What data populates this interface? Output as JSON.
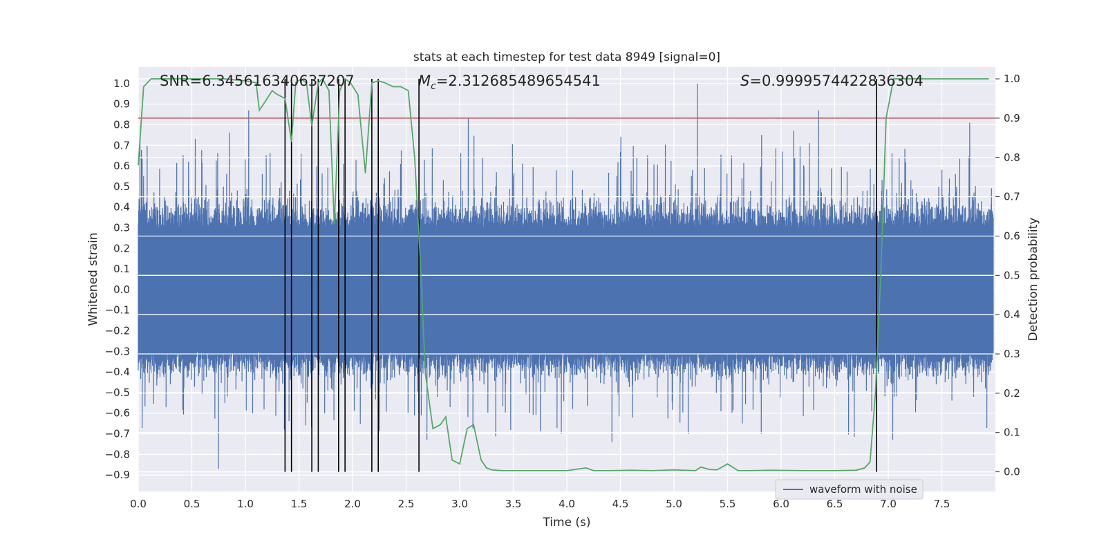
{
  "chart_data": {
    "type": "line",
    "title": "stats at each timestep for test data 8949 [signal=0]",
    "xlabel": "Time (s)",
    "ylabel_left": "Whitened strain",
    "ylabel_right": "Detection probability",
    "xlim": [
      0.0,
      8.0
    ],
    "ylim_left": [
      -0.98,
      1.08
    ],
    "ylim_right": [
      -0.05,
      1.03
    ],
    "x_ticks": [
      0.0,
      0.5,
      1.0,
      1.5,
      2.0,
      2.5,
      3.0,
      3.5,
      4.0,
      4.5,
      5.0,
      5.5,
      6.0,
      6.5,
      7.0,
      7.5
    ],
    "x_tick_labels": [
      "0.0",
      "0.5",
      "1.0",
      "1.5",
      "2.0",
      "2.5",
      "3.0",
      "3.5",
      "4.0",
      "4.5",
      "5.0",
      "5.5",
      "6.0",
      "6.5",
      "7.0",
      "7.5"
    ],
    "y_left_ticks": [
      1.0,
      0.9,
      0.8,
      0.7,
      0.6,
      0.5,
      0.4,
      0.3,
      0.2,
      0.1,
      0.0,
      -0.1,
      -0.2,
      -0.3,
      -0.4,
      -0.5,
      -0.6,
      -0.7,
      -0.8,
      -0.9
    ],
    "y_left_tick_labels": [
      "1.0",
      "0.9",
      "0.8",
      "0.7",
      "0.6",
      "0.5",
      "0.4",
      "0.3",
      "0.2",
      "0.1",
      "0.0",
      "−0.1",
      "−0.2",
      "−0.3",
      "−0.4",
      "−0.5",
      "−0.6",
      "−0.7",
      "−0.8",
      "−0.9"
    ],
    "y_right_ticks": [
      1.0,
      0.9,
      0.8,
      0.7,
      0.6,
      0.5,
      0.4,
      0.3,
      0.2,
      0.1,
      0.0
    ],
    "y_right_tick_labels": [
      "1.0",
      "0.9",
      "0.8",
      "0.7",
      "0.6",
      "0.5",
      "0.4",
      "0.3",
      "0.2",
      "0.1",
      "0.0"
    ],
    "threshold": 0.9,
    "waveform": {
      "name": "waveform with noise",
      "samples": 2400,
      "core_amplitude": 0.3,
      "max_peak": 1.0,
      "min_trough": -0.87
    },
    "detection_probability": {
      "name": "Detection probability",
      "x": [
        0.0,
        0.05,
        0.12,
        0.2,
        0.4,
        0.6,
        0.8,
        1.0,
        1.1,
        1.13,
        1.18,
        1.25,
        1.3,
        1.37,
        1.43,
        1.47,
        1.52,
        1.57,
        1.62,
        1.68,
        1.72,
        1.78,
        1.83,
        1.88,
        1.93,
        1.98,
        2.05,
        2.12,
        2.18,
        2.24,
        2.3,
        2.38,
        2.45,
        2.52,
        2.58,
        2.63,
        2.68,
        2.75,
        2.82,
        2.87,
        2.93,
        3.0,
        3.07,
        3.13,
        3.2,
        3.25,
        3.3,
        3.4,
        3.5,
        3.6,
        3.8,
        4.0,
        4.1,
        4.18,
        4.25,
        4.4,
        4.6,
        4.8,
        5.0,
        5.1,
        5.2,
        5.25,
        5.33,
        5.4,
        5.5,
        5.6,
        5.7,
        5.9,
        6.2,
        6.5,
        6.7,
        6.78,
        6.83,
        6.88,
        6.93,
        6.98,
        7.05,
        7.2,
        7.5,
        7.94
      ],
      "values": [
        0.78,
        0.98,
        1.0,
        1.0,
        1.0,
        1.0,
        1.0,
        0.995,
        0.99,
        0.92,
        0.94,
        0.97,
        0.96,
        0.95,
        0.84,
        0.99,
        1.0,
        0.99,
        0.88,
        0.99,
        1.0,
        0.97,
        0.63,
        0.97,
        1.0,
        0.99,
        0.96,
        0.76,
        0.99,
        0.995,
        0.99,
        0.98,
        0.98,
        0.97,
        0.8,
        0.55,
        0.25,
        0.11,
        0.12,
        0.14,
        0.03,
        0.02,
        0.11,
        0.12,
        0.03,
        0.01,
        0.005,
        0.003,
        0.003,
        0.003,
        0.003,
        0.003,
        0.007,
        0.01,
        0.003,
        0.003,
        0.004,
        0.003,
        0.005,
        0.004,
        0.003,
        0.012,
        0.006,
        0.005,
        0.02,
        0.003,
        0.003,
        0.004,
        0.003,
        0.003,
        0.004,
        0.01,
        0.025,
        0.2,
        0.5,
        0.9,
        1.0,
        1.0,
        1.0,
        1.0
      ]
    },
    "trigger_times": [
      1.37,
      1.43,
      1.62,
      1.68,
      1.87,
      1.93,
      2.18,
      2.24,
      2.62,
      6.89
    ],
    "annotations": {
      "snr": "SNR=6.345616340637207",
      "mc_symbol": "M",
      "mc_sub": "c",
      "mc_value": "=2.312685489654541",
      "s_symbol": "S",
      "s_value": "=0.9999574422836304"
    },
    "legend": {
      "label": "waveform with noise",
      "location": "lower-right"
    },
    "colors": {
      "waveform": "#4c72b0",
      "probability": "#55a868",
      "threshold": "#c44e52",
      "triggers": "#000000",
      "background": "#eaeaf2",
      "grid": "#ffffff"
    }
  }
}
